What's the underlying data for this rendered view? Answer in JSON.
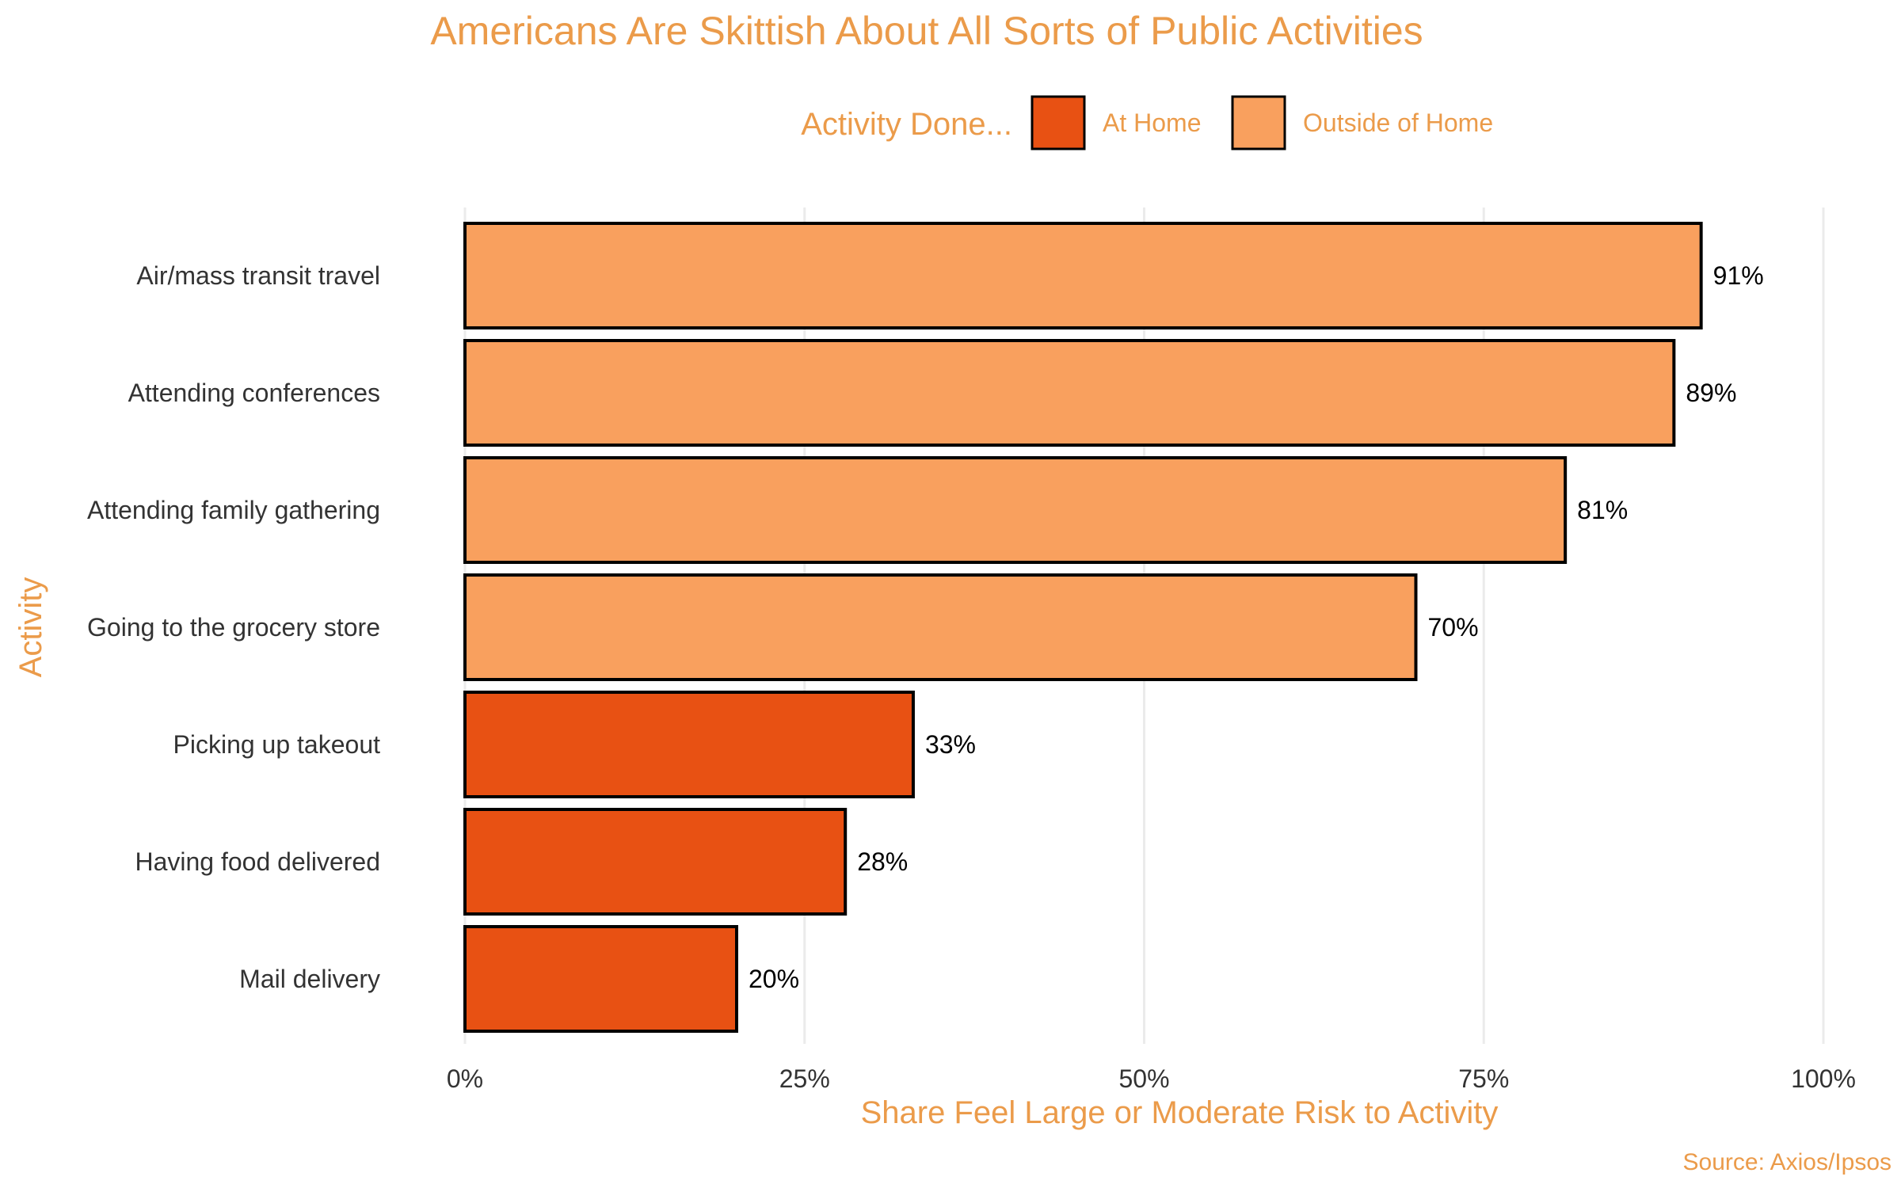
{
  "chart_data": {
    "type": "bar",
    "orientation": "horizontal",
    "title": "Americans Are Skittish About All Sorts of Public Activities",
    "xlabel": "Share Feel Large or Moderate Risk to Activity",
    "ylabel": "Activity",
    "caption": "Source: Axios/Ipsos",
    "xlim": [
      0,
      100
    ],
    "xticks": [
      0,
      25,
      50,
      75,
      100
    ],
    "xtick_labels": [
      "0%",
      "25%",
      "50%",
      "75%",
      "100%"
    ],
    "grid": "vertical major",
    "legend": {
      "title": "Activity Done...",
      "position": "top",
      "entries": [
        {
          "label": "At Home",
          "color": "#E85113"
        },
        {
          "label": "Outside of Home",
          "color": "#F9A05E"
        }
      ]
    },
    "categories": [
      "Air/mass transit travel",
      "Attending conferences",
      "Attending family gathering",
      "Going to the grocery store",
      "Picking up takeout",
      "Having food delivered",
      "Mail delivery"
    ],
    "values": [
      91,
      89,
      81,
      70,
      33,
      28,
      20
    ],
    "data_labels": [
      "91%",
      "89%",
      "81%",
      "70%",
      "33%",
      "28%",
      "20%"
    ],
    "groups": [
      "Outside of Home",
      "Outside of Home",
      "Outside of Home",
      "Outside of Home",
      "At Home",
      "At Home",
      "At Home"
    ]
  },
  "colors": {
    "accent_text": "#EB9B4A",
    "at_home": "#E85113",
    "outside_home": "#F9A05E",
    "bar_outline": "#000000",
    "grid": "#EBEBEB"
  }
}
